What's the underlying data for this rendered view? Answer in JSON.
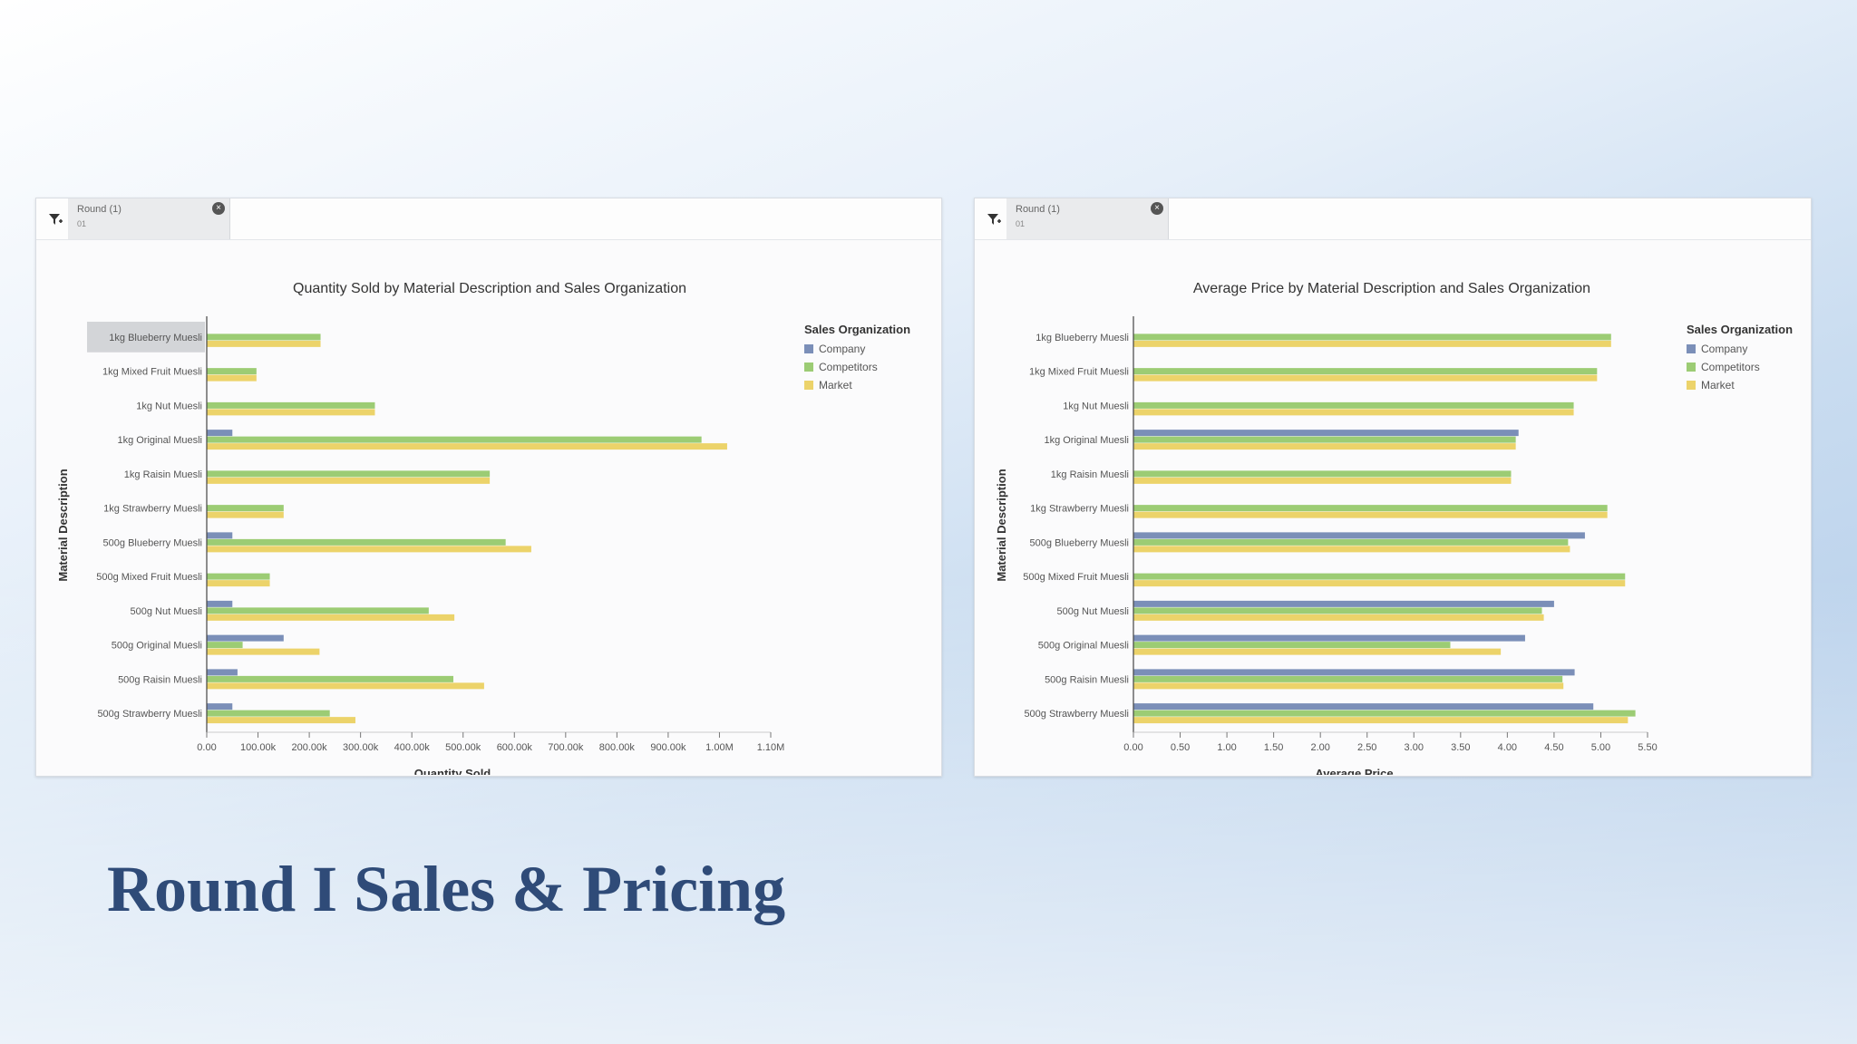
{
  "slide": {
    "title": "Round I Sales & Pricing"
  },
  "colors": {
    "company": "#7b8fb8",
    "competitors": "#9ccc74",
    "market": "#ecd36a",
    "axis": "#555555",
    "text": "#444444"
  },
  "panels": [
    {
      "filter_label": "Round (1)",
      "filter_value": "01",
      "filter_icon": "filter-funnel-icon",
      "close_icon": "close-icon"
    },
    {
      "filter_label": "Round (1)",
      "filter_value": "01",
      "filter_icon": "filter-funnel-icon",
      "close_icon": "close-icon"
    }
  ],
  "chart_data": [
    {
      "type": "bar",
      "orientation": "horizontal",
      "title": "Quantity Sold by Material Description and Sales Organization",
      "xlabel": "Quantity Sold",
      "ylabel": "Material Description",
      "legend_title": "Sales Organization",
      "legend_position": "right",
      "highlighted_category": "1kg Blueberry Muesli",
      "xlim": [
        0,
        1100000
      ],
      "xticks": [
        0,
        100000,
        200000,
        300000,
        400000,
        500000,
        600000,
        700000,
        800000,
        900000,
        1000000,
        1100000
      ],
      "xtick_labels": [
        "0.00",
        "100.00k",
        "200.00k",
        "300.00k",
        "400.00k",
        "500.00k",
        "600.00k",
        "700.00k",
        "800.00k",
        "900.00k",
        "1.00M",
        "1.10M"
      ],
      "categories": [
        "1kg Blueberry Muesli",
        "1kg Mixed Fruit Muesli",
        "1kg Nut Muesli",
        "1kg Original Muesli",
        "1kg Raisin Muesli",
        "1kg Strawberry Muesli",
        "500g Blueberry Muesli",
        "500g Mixed Fruit Muesli",
        "500g Nut Muesli",
        "500g Original Muesli",
        "500g Raisin Muesli",
        "500g Strawberry Muesli"
      ],
      "series": [
        {
          "name": "Company",
          "values": [
            0,
            0,
            0,
            50000,
            0,
            0,
            50000,
            0,
            50000,
            150000,
            60000,
            50000
          ]
        },
        {
          "name": "Competitors",
          "values": [
            222000,
            97000,
            328000,
            965000,
            552000,
            150000,
            583000,
            123000,
            433000,
            70000,
            481000,
            240000
          ]
        },
        {
          "name": "Market",
          "values": [
            222000,
            97000,
            328000,
            1015000,
            552000,
            150000,
            633000,
            123000,
            483000,
            220000,
            541000,
            290000
          ]
        }
      ]
    },
    {
      "type": "bar",
      "orientation": "horizontal",
      "title": "Average Price by Material Description and Sales Organization",
      "xlabel": "Average Price",
      "ylabel": "Material Description",
      "legend_title": "Sales Organization",
      "legend_position": "right",
      "xlim": [
        0,
        5.5
      ],
      "xticks": [
        0,
        0.5,
        1,
        1.5,
        2,
        2.5,
        3,
        3.5,
        4,
        4.5,
        5,
        5.5
      ],
      "xtick_labels": [
        "0.00",
        "0.50",
        "1.00",
        "1.50",
        "2.00",
        "2.50",
        "3.00",
        "3.50",
        "4.00",
        "4.50",
        "5.00",
        "5.50"
      ],
      "categories": [
        "1kg Blueberry Muesli",
        "1kg Mixed Fruit Muesli",
        "1kg Nut Muesli",
        "1kg Original Muesli",
        "1kg Raisin Muesli",
        "1kg Strawberry Muesli",
        "500g Blueberry Muesli",
        "500g Mixed Fruit Muesli",
        "500g Nut Muesli",
        "500g Original Muesli",
        "500g Raisin Muesli",
        "500g Strawberry Muesli"
      ],
      "series": [
        {
          "name": "Company",
          "values": [
            0,
            0,
            0,
            4.12,
            0,
            0,
            4.83,
            0,
            4.5,
            4.19,
            4.72,
            4.92
          ]
        },
        {
          "name": "Competitors",
          "values": [
            5.11,
            4.96,
            4.71,
            4.09,
            4.04,
            5.07,
            4.65,
            5.26,
            4.37,
            3.39,
            4.59,
            5.37
          ]
        },
        {
          "name": "Market",
          "values": [
            5.11,
            4.96,
            4.71,
            4.09,
            4.04,
            5.07,
            4.67,
            5.26,
            4.39,
            3.93,
            4.6,
            5.29
          ]
        }
      ]
    }
  ]
}
